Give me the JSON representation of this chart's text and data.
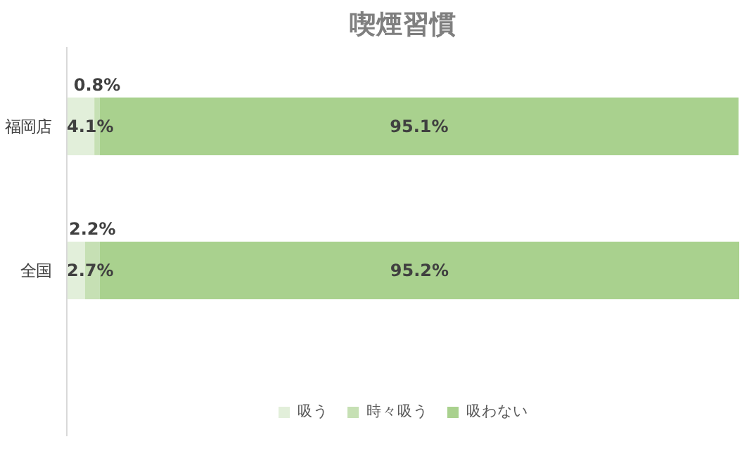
{
  "chart_data": {
    "type": "bar",
    "orientation": "horizontal",
    "stacked": true,
    "title": "喫煙習慣",
    "categories": [
      "福岡店",
      "全国"
    ],
    "series": [
      {
        "name": "吸う",
        "color": "#e2efda",
        "values": [
          4.1,
          2.7
        ],
        "value_labels": [
          "4.1%",
          "2.7%"
        ]
      },
      {
        "name": "時々吸う",
        "color": "#c6e0b4",
        "values": [
          0.8,
          2.2
        ],
        "value_labels": [
          "0.8%",
          "2.2%"
        ]
      },
      {
        "name": "吸わない",
        "color": "#a9d18e",
        "values": [
          95.1,
          95.2
        ],
        "value_labels": [
          "95.1%",
          "95.2%"
        ]
      }
    ],
    "tick_labels": "y",
    "grid": false,
    "legend": "bottom"
  }
}
